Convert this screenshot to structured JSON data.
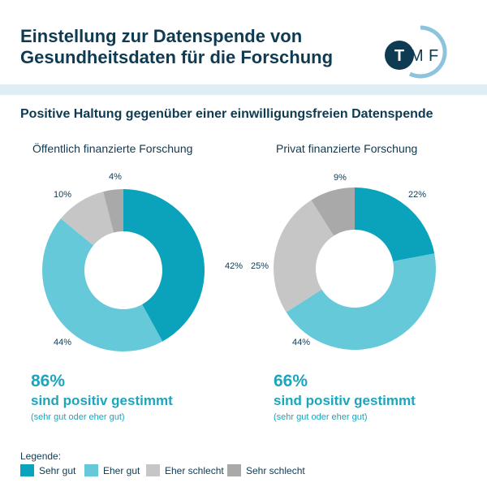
{
  "header": {
    "title_line1": "Einstellung zur Datenspende von",
    "title_line2": "Gesundheitsdaten für die Forschung",
    "logo_text": "TMF"
  },
  "subtitle": "Positive Haltung gegenüber einer einwilligungsfreien Datenspende",
  "colors": {
    "Sehr gut": "#0aa3bb",
    "Eher gut": "#66c9d9",
    "Eher schlecht": "#c6c6c6",
    "Sehr schlecht": "#a9a9a9",
    "title": "#0e3a52",
    "accent": "#1ca5bc"
  },
  "chart_data": [
    {
      "type": "pie",
      "style": "donut",
      "title": "Öffentlich finanzierte Forschung",
      "categories": [
        "Sehr gut",
        "Eher gut",
        "Eher schlecht",
        "Sehr schlecht"
      ],
      "values": [
        42,
        44,
        10,
        4
      ],
      "labels": [
        "42%",
        "44%",
        "10%",
        "4%"
      ],
      "summary": {
        "value": "86%",
        "text": "sind positiv gestimmt",
        "note": "(sehr gut oder eher gut)"
      }
    },
    {
      "type": "pie",
      "style": "donut",
      "title": "Privat finanzierte Forschung",
      "categories": [
        "Sehr gut",
        "Eher gut",
        "Eher schlecht",
        "Sehr schlecht"
      ],
      "values": [
        22,
        44,
        25,
        9
      ],
      "labels": [
        "22%",
        "44%",
        "25%",
        "9%"
      ],
      "summary": {
        "value": "66%",
        "text": "sind positiv gestimmt",
        "note": "(sehr gut oder eher gut)"
      }
    }
  ],
  "legend": {
    "title": "Legende:",
    "items": [
      "Sehr gut",
      "Eher gut",
      "Eher schlecht",
      "Sehr schlecht"
    ]
  }
}
